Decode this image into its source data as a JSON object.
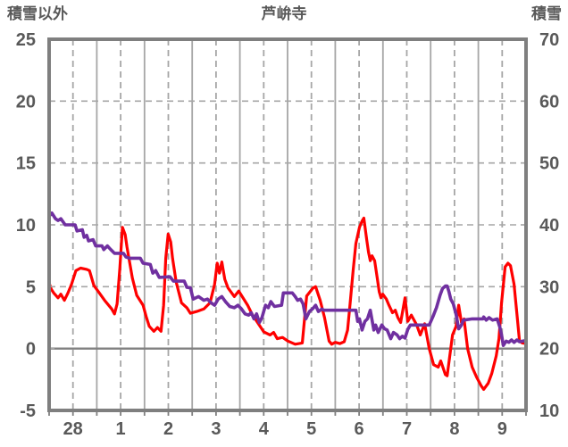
{
  "chart_data": {
    "type": "line",
    "title": "芦峅寺",
    "left_axis": {
      "label": "積雪以外",
      "min": -5,
      "max": 25,
      "ticks": [
        25,
        20,
        15,
        10,
        5,
        0,
        -5
      ]
    },
    "right_axis": {
      "label": "積雪",
      "min": 10,
      "max": 70,
      "ticks": [
        70,
        60,
        50,
        40,
        30,
        20,
        10
      ]
    },
    "x_axis": {
      "tick_labels": [
        "28",
        "1",
        "2",
        "3",
        "4",
        "5",
        "6",
        "7",
        "8",
        "9"
      ],
      "days": 10,
      "hours_total": 240,
      "note_visible_structure": "labels centered under dashed mid-day gridlines; solid gridlines at day boundaries"
    },
    "grid": {
      "horizontal_dashed_at_left_values": [
        5,
        10,
        15,
        20
      ],
      "horizontal_solid_at_left_value": 0,
      "vertical_solid": "day-boundaries",
      "vertical_dashed": "day-midpoints",
      "legend": "none"
    },
    "colors": {
      "background": "#ffffff",
      "frame": "#7f7f7f",
      "grid": "#a6a6a6",
      "zero_line": "#808080",
      "label": "#595959",
      "series_red": "#ff0000",
      "series_purple": "#7030a0"
    },
    "series": [
      {
        "name": "積雪以外",
        "axis": "left",
        "color_key": "series_red",
        "stroke_width": 3.2,
        "points": [
          [
            0,
            5.3
          ],
          [
            1.1,
            4.8
          ],
          [
            2.3,
            4.5
          ],
          [
            4.5,
            4.1
          ],
          [
            5.9,
            4.4
          ],
          [
            7.7,
            3.9
          ],
          [
            9.5,
            4.5
          ],
          [
            11.3,
            5.2
          ],
          [
            13.5,
            6.3
          ],
          [
            15.8,
            6.5
          ],
          [
            18.9,
            6.4
          ],
          [
            20.3,
            6.3
          ],
          [
            22.5,
            5.1
          ],
          [
            24.8,
            4.6
          ],
          [
            27.9,
            3.9
          ],
          [
            31.5,
            3.2
          ],
          [
            32.9,
            2.8
          ],
          [
            34.2,
            3.6
          ],
          [
            35.6,
            6.5
          ],
          [
            36.9,
            9.8
          ],
          [
            38.3,
            9.2
          ],
          [
            39.2,
            8.2
          ],
          [
            41.9,
            5.7
          ],
          [
            44.1,
            4.3
          ],
          [
            47.3,
            3.5
          ],
          [
            48.8,
            2.6
          ],
          [
            50.4,
            1.8
          ],
          [
            52.7,
            1.4
          ],
          [
            54.5,
            1.7
          ],
          [
            56.3,
            1.4
          ],
          [
            57.6,
            3.5
          ],
          [
            58.7,
            7.3
          ],
          [
            59.9,
            9.25
          ],
          [
            61.2,
            8.6
          ],
          [
            62.1,
            7.3
          ],
          [
            63.9,
            5.4
          ],
          [
            66.6,
            3.7
          ],
          [
            69.3,
            3.3
          ],
          [
            71.1,
            2.85
          ],
          [
            74.3,
            3.0
          ],
          [
            77.9,
            3.2
          ],
          [
            81,
            3.7
          ],
          [
            83.3,
            5.2
          ],
          [
            84.6,
            6.9
          ],
          [
            85.7,
            6.1
          ],
          [
            86.9,
            7.0
          ],
          [
            88.4,
            5.6
          ],
          [
            90,
            4.9
          ],
          [
            93.2,
            4.2
          ],
          [
            95.4,
            4.65
          ],
          [
            99.9,
            3.5
          ],
          [
            102.2,
            2.75
          ],
          [
            104.9,
            2.1
          ],
          [
            108,
            1.35
          ],
          [
            111.2,
            1.1
          ],
          [
            113,
            1.3
          ],
          [
            114.8,
            0.8
          ],
          [
            117.5,
            0.9
          ],
          [
            120.2,
            0.6
          ],
          [
            123.8,
            0.35
          ],
          [
            127.4,
            0.45
          ],
          [
            129.6,
            4.25
          ],
          [
            132.8,
            4.9
          ],
          [
            134.1,
            5.0
          ],
          [
            136.4,
            3.9
          ],
          [
            138.6,
            2.5
          ],
          [
            140.9,
            0.6
          ],
          [
            142.2,
            0.35
          ],
          [
            144,
            0.5
          ],
          [
            146.3,
            0.4
          ],
          [
            148.5,
            0.55
          ],
          [
            150.2,
            1.5
          ],
          [
            151.5,
            3.7
          ],
          [
            153,
            6.3
          ],
          [
            154.4,
            8.5
          ],
          [
            156.2,
            9.8
          ],
          [
            157.5,
            10.3
          ],
          [
            158.4,
            10.55
          ],
          [
            159.8,
            8.8
          ],
          [
            160.7,
            7.8
          ],
          [
            161.6,
            7.1
          ],
          [
            162.5,
            7.5
          ],
          [
            163.8,
            7.1
          ],
          [
            165.2,
            5.6
          ],
          [
            166.1,
            4.6
          ],
          [
            167,
            4.1
          ],
          [
            167.9,
            4.4
          ],
          [
            169.7,
            4.0
          ],
          [
            171,
            3.5
          ],
          [
            172.8,
            2.9
          ],
          [
            174.2,
            3.1
          ],
          [
            175.5,
            2.5
          ],
          [
            176.9,
            2.1
          ],
          [
            179.1,
            4.1
          ],
          [
            180.5,
            2.2
          ],
          [
            182.3,
            2.7
          ],
          [
            185,
            1.9
          ],
          [
            186.8,
            1.1
          ],
          [
            189,
            2.0
          ],
          [
            191.3,
            0.0
          ],
          [
            193.5,
            -1.3
          ],
          [
            195.8,
            -1.5
          ],
          [
            197.1,
            -1.0
          ],
          [
            199.4,
            -2.1
          ],
          [
            200.3,
            -2.2
          ],
          [
            202.1,
            0.0
          ],
          [
            203,
            1.1
          ],
          [
            204.8,
            1.8
          ],
          [
            206.1,
            3.5
          ],
          [
            207.5,
            2.1
          ],
          [
            208.8,
            2.4
          ],
          [
            210.6,
            0.0
          ],
          [
            212.9,
            -1.5
          ],
          [
            215.1,
            -2.3
          ],
          [
            217.4,
            -3.0
          ],
          [
            218.7,
            -3.3
          ],
          [
            221,
            -2.8
          ],
          [
            222.8,
            -2.0
          ],
          [
            225,
            -0.6
          ],
          [
            226.4,
            0.8
          ],
          [
            227.7,
            3.7
          ],
          [
            229.5,
            6.6
          ],
          [
            230.9,
            6.9
          ],
          [
            232.2,
            6.7
          ],
          [
            234,
            5.2
          ],
          [
            235.4,
            2.8
          ],
          [
            236.7,
            0.6
          ],
          [
            238.1,
            0.45
          ],
          [
            240,
            0.4
          ]
        ]
      },
      {
        "name": "積雪",
        "axis": "right",
        "color_key": "series_purple",
        "stroke_width": 3.6,
        "points": [
          [
            0,
            41.4
          ],
          [
            1.4,
            41.9
          ],
          [
            3.2,
            41.0
          ],
          [
            4.5,
            40.7
          ],
          [
            5.9,
            41.0
          ],
          [
            8.1,
            40.0
          ],
          [
            13.1,
            40.0
          ],
          [
            14,
            39.0
          ],
          [
            16.7,
            39.2
          ],
          [
            17.6,
            38.0
          ],
          [
            18.9,
            38.3
          ],
          [
            19.8,
            37.4
          ],
          [
            22.1,
            37.6
          ],
          [
            23.4,
            36.6
          ],
          [
            26.6,
            36.6
          ],
          [
            27.5,
            36.0
          ],
          [
            29.3,
            36.6
          ],
          [
            31,
            36.0
          ],
          [
            32.9,
            35.4
          ],
          [
            37.4,
            35.4
          ],
          [
            38.7,
            34.8
          ],
          [
            40.5,
            34.6
          ],
          [
            45.9,
            34.6
          ],
          [
            47.3,
            33.8
          ],
          [
            50.9,
            33.6
          ],
          [
            52.2,
            32.2
          ],
          [
            53.6,
            32.6
          ],
          [
            55.4,
            31.5
          ],
          [
            60.8,
            31.6
          ],
          [
            62.6,
            30.9
          ],
          [
            68,
            30.9
          ],
          [
            69.3,
            29.9
          ],
          [
            71.1,
            29.8
          ],
          [
            72.5,
            28.0
          ],
          [
            75.2,
            28.4
          ],
          [
            77.9,
            27.8
          ],
          [
            79.7,
            28.0
          ],
          [
            81.5,
            27.4
          ],
          [
            83.3,
            27.0
          ],
          [
            85.1,
            28.0
          ],
          [
            86.9,
            28.4
          ],
          [
            88.7,
            27.6
          ],
          [
            90.9,
            26.8
          ],
          [
            93.2,
            26.6
          ],
          [
            95,
            27.0
          ],
          [
            96.8,
            26.4
          ],
          [
            98.6,
            25.6
          ],
          [
            100.4,
            25.4
          ],
          [
            101.7,
            25.8
          ],
          [
            103.1,
            24.8
          ],
          [
            104.4,
            25.6
          ],
          [
            105.8,
            24.2
          ],
          [
            107.1,
            25.0
          ],
          [
            108.9,
            27.0
          ],
          [
            110.3,
            26.6
          ],
          [
            111.6,
            27.6
          ],
          [
            113.4,
            26.8
          ],
          [
            117,
            27.0
          ],
          [
            117.9,
            29.0
          ],
          [
            122.4,
            29.0
          ],
          [
            123.8,
            28.4
          ],
          [
            125.1,
            27.8
          ],
          [
            126.5,
            28.0
          ],
          [
            127.8,
            27.2
          ],
          [
            129.2,
            24.8
          ],
          [
            131,
            26.0
          ],
          [
            132.8,
            26.5
          ],
          [
            134.1,
            27.0
          ],
          [
            135.5,
            26.0
          ],
          [
            137.3,
            26.4
          ],
          [
            138.2,
            26.2
          ],
          [
            154.4,
            26.2
          ],
          [
            155.3,
            24.4
          ],
          [
            156.2,
            24.8
          ],
          [
            157.5,
            23.0
          ],
          [
            158.9,
            24.4
          ],
          [
            160.2,
            24.8
          ],
          [
            161.6,
            26.2
          ],
          [
            163.4,
            23.0
          ],
          [
            164.3,
            23.8
          ],
          [
            165.6,
            22.6
          ],
          [
            167.4,
            23.8
          ],
          [
            168.8,
            23.2
          ],
          [
            170.1,
            23.0
          ],
          [
            171.9,
            21.6
          ],
          [
            173.3,
            22.6
          ],
          [
            175.1,
            22.2
          ],
          [
            176.4,
            21.6
          ],
          [
            177.8,
            22.0
          ],
          [
            179.1,
            21.7
          ],
          [
            180.5,
            23.1
          ],
          [
            181.8,
            23.8
          ],
          [
            191.3,
            23.8
          ],
          [
            193.1,
            25.1
          ],
          [
            194.9,
            26.6
          ],
          [
            196.7,
            28.6
          ],
          [
            198,
            29.7
          ],
          [
            199.4,
            30.1
          ],
          [
            200.3,
            30.1
          ],
          [
            201.2,
            29.2
          ],
          [
            202.1,
            28.0
          ],
          [
            203.4,
            27.2
          ],
          [
            204.8,
            25.5
          ],
          [
            206.1,
            23.2
          ],
          [
            207.5,
            23.8
          ],
          [
            208.4,
            24.6
          ],
          [
            213,
            24.8
          ],
          [
            218.3,
            24.8
          ],
          [
            218.7,
            25.1
          ],
          [
            220,
            24.6
          ],
          [
            221.4,
            25.0
          ],
          [
            223.2,
            24.6
          ],
          [
            225.5,
            24.8
          ],
          [
            226.8,
            23.5
          ],
          [
            227.7,
            22.2
          ],
          [
            228.6,
            20.5
          ],
          [
            230,
            21.2
          ],
          [
            231.3,
            21.0
          ],
          [
            232.7,
            21.4
          ],
          [
            234,
            21.0
          ],
          [
            235.4,
            21.4
          ],
          [
            236.7,
            21.1
          ],
          [
            240,
            21.3
          ]
        ]
      }
    ]
  }
}
